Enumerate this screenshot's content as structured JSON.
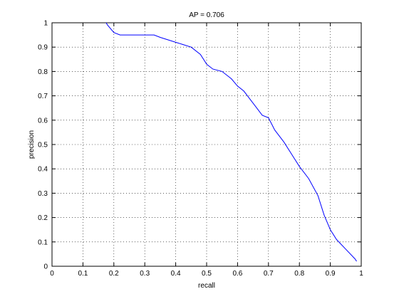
{
  "chart_data": {
    "type": "line",
    "title": "AP = 0.706",
    "xlabel": "recall",
    "ylabel": "precision",
    "x": [
      0.175,
      0.18,
      0.2,
      0.22,
      0.3,
      0.33,
      0.35,
      0.4,
      0.45,
      0.48,
      0.5,
      0.52,
      0.55,
      0.58,
      0.6,
      0.62,
      0.65,
      0.68,
      0.7,
      0.72,
      0.75,
      0.78,
      0.8,
      0.83,
      0.86,
      0.88,
      0.9,
      0.92,
      0.95,
      0.98,
      0.985
    ],
    "values": [
      1.0,
      0.99,
      0.96,
      0.95,
      0.95,
      0.95,
      0.94,
      0.92,
      0.9,
      0.87,
      0.83,
      0.81,
      0.8,
      0.77,
      0.74,
      0.72,
      0.67,
      0.62,
      0.61,
      0.56,
      0.51,
      0.45,
      0.41,
      0.36,
      0.29,
      0.21,
      0.15,
      0.11,
      0.07,
      0.03,
      0.02
    ],
    "color": "#0000ff",
    "xlim": [
      0,
      1
    ],
    "ylim": [
      0,
      1
    ],
    "xticks": [
      0,
      0.1,
      0.2,
      0.3,
      0.4,
      0.5,
      0.6,
      0.7,
      0.8,
      0.9,
      1
    ],
    "yticks": [
      0,
      0.1,
      0.2,
      0.3,
      0.4,
      0.5,
      0.6,
      0.7,
      0.8,
      0.9,
      1
    ],
    "grid": true
  }
}
